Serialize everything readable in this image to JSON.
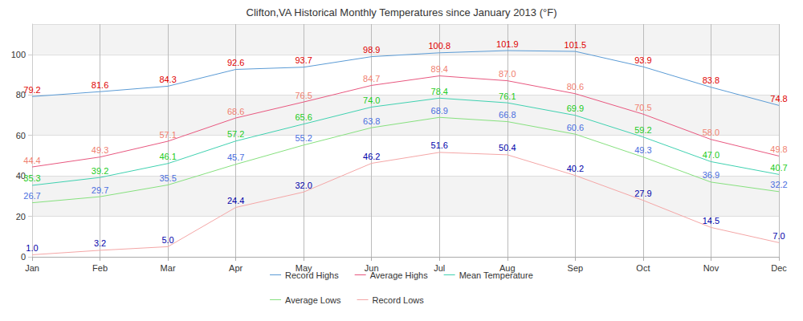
{
  "chart_data": {
    "type": "line",
    "title": "Clifton,VA Historical Monthly Temperatures since January 2013 (°F)",
    "categories": [
      "Jan",
      "Feb",
      "Mar",
      "Apr",
      "May",
      "Jun",
      "Jul",
      "Aug",
      "Sep",
      "Oct",
      "Nov",
      "Dec"
    ],
    "series": [
      {
        "name": "Record Highs",
        "color": "#5b9bd5",
        "values": [
          79.2,
          81.6,
          84.3,
          92.6,
          93.7,
          98.9,
          100.8,
          101.9,
          101.5,
          93.9,
          83.8,
          74.8
        ],
        "value_labels": [
          "79.2",
          "81.6",
          "84.3",
          "92.6",
          "93.7",
          "98.9",
          "100.8",
          "101.9",
          "101.5",
          "93.9",
          "83.8",
          "74.8"
        ]
      },
      {
        "name": "Average Highs",
        "color": "#e8577f",
        "values": [
          44.4,
          49.3,
          57.1,
          68.6,
          76.5,
          84.7,
          89.4,
          87.0,
          80.6,
          70.5,
          58.0,
          49.8
        ],
        "value_labels": [
          "44.4",
          "49.3",
          "57.1",
          "68.6",
          "76.5",
          "84.7",
          "89.4",
          "87.0",
          "80.6",
          "70.5",
          "58.0",
          "49.8"
        ]
      },
      {
        "name": "Mean Temperature",
        "color": "#3fd1b0",
        "values": [
          35.3,
          39.2,
          46.1,
          57.2,
          65.6,
          74.0,
          78.4,
          76.1,
          69.9,
          59.2,
          47.0,
          40.7
        ],
        "value_labels": [
          "35.3",
          "39.2",
          "46.1",
          "57.2",
          "65.6",
          "74.0",
          "78.4",
          "76.1",
          "69.9",
          "59.2",
          "47.0",
          "40.7"
        ]
      },
      {
        "name": "Average Lows",
        "color": "#86e07e",
        "values": [
          26.7,
          29.7,
          35.5,
          45.7,
          55.2,
          63.8,
          68.9,
          66.8,
          60.6,
          49.3,
          36.9,
          32.2
        ],
        "value_labels": [
          "26.7",
          "29.7",
          "35.5",
          "45.7",
          "55.2",
          "63.8",
          "68.9",
          "66.8",
          "60.6",
          "49.3",
          "36.9",
          "32.2"
        ]
      },
      {
        "name": "Record Lows",
        "color": "#f4a6a6",
        "values": [
          1.0,
          3.2,
          5.0,
          24.4,
          32.0,
          46.2,
          51.6,
          50.4,
          40.2,
          27.9,
          14.5,
          7.0
        ],
        "value_labels": [
          "1.0",
          "3.2",
          "5.0",
          "24.4",
          "32.0",
          "46.2",
          "51.6",
          "50.4",
          "40.2",
          "27.9",
          "14.5",
          "7.0"
        ]
      }
    ],
    "ylim": [
      0,
      115
    ],
    "yticks": [
      0,
      20,
      40,
      60,
      80,
      100
    ],
    "grid": true,
    "legend": "bottom",
    "data_labels": true,
    "marker": "none"
  }
}
